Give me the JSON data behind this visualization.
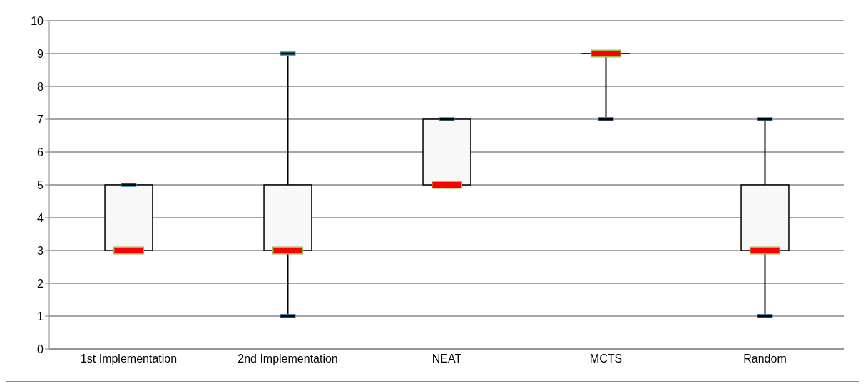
{
  "chart_data": {
    "type": "box",
    "categories": [
      "1st Implementation",
      "2nd Implementation",
      "NEAT",
      "MCTS",
      "Random"
    ],
    "boxes": [
      {
        "low": 3,
        "q1": 3,
        "median": 3,
        "q3": 5,
        "high": 5
      },
      {
        "low": 1,
        "q1": 3,
        "median": 3,
        "q3": 5,
        "high": 9
      },
      {
        "low": 5,
        "q1": 5,
        "median": 5,
        "q3": 7,
        "high": 7
      },
      {
        "low": 7,
        "q1": 9,
        "median": 9,
        "q3": 9,
        "high": 9
      },
      {
        "low": 1,
        "q1": 3,
        "median": 3,
        "q3": 5,
        "high": 7
      }
    ],
    "ylim": [
      0,
      10
    ],
    "yticks": [
      0,
      1,
      2,
      3,
      4,
      5,
      6,
      7,
      8,
      9,
      10
    ],
    "grid": "y"
  }
}
